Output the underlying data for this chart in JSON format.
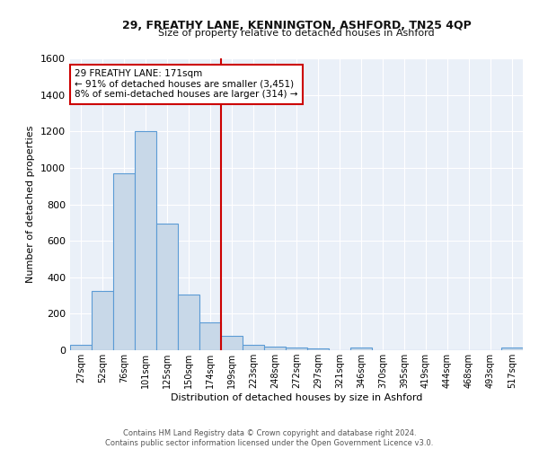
{
  "title1": "29, FREATHY LANE, KENNINGTON, ASHFORD, TN25 4QP",
  "title2": "Size of property relative to detached houses in Ashford",
  "xlabel": "Distribution of detached houses by size in Ashford",
  "ylabel": "Number of detached properties",
  "footnote": "Contains HM Land Registry data © Crown copyright and database right 2024.\nContains public sector information licensed under the Open Government Licence v3.0.",
  "bar_color": "#c8d8e8",
  "bar_edge_color": "#5b9bd5",
  "background_color": "#eaf0f8",
  "annotation_box_edge": "#cc0000",
  "vline_color": "#cc0000",
  "categories": [
    "27sqm",
    "52sqm",
    "76sqm",
    "101sqm",
    "125sqm",
    "150sqm",
    "174sqm",
    "199sqm",
    "223sqm",
    "248sqm",
    "272sqm",
    "297sqm",
    "321sqm",
    "346sqm",
    "370sqm",
    "395sqm",
    "419sqm",
    "444sqm",
    "468sqm",
    "493sqm",
    "517sqm"
  ],
  "values": [
    28,
    325,
    968,
    1200,
    695,
    305,
    155,
    78,
    28,
    18,
    15,
    12,
    0,
    15,
    0,
    0,
    0,
    0,
    0,
    0,
    15
  ],
  "ylim": [
    0,
    1600
  ],
  "yticks": [
    0,
    200,
    400,
    600,
    800,
    1000,
    1200,
    1400,
    1600
  ],
  "annotation_text": "29 FREATHY LANE: 171sqm\n← 91% of detached houses are smaller (3,451)\n8% of semi-detached houses are larger (314) →",
  "vline_x": 6.5
}
